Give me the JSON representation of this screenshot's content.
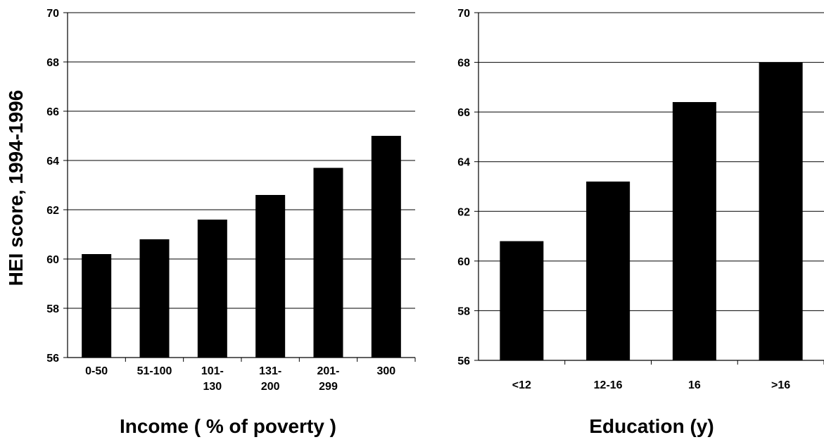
{
  "chart_data": [
    {
      "type": "bar",
      "categories": [
        [
          "0-50"
        ],
        [
          "51-100"
        ],
        [
          "101-",
          "130"
        ],
        [
          "131-",
          "200"
        ],
        [
          "201-",
          "299"
        ],
        [
          "300"
        ]
      ],
      "values": [
        60.2,
        60.8,
        61.6,
        62.6,
        63.7,
        65.0
      ],
      "ylim": [
        56,
        70
      ],
      "yticks": [
        "56",
        "58",
        "60",
        "62",
        "64",
        "66",
        "68",
        "70"
      ],
      "xlabel": "Income ( % of poverty )",
      "ylabel": "HEI score, 1994-1996",
      "grid": true,
      "bar_color": "#000000"
    },
    {
      "type": "bar",
      "categories": [
        [
          "<12"
        ],
        [
          "12-16"
        ],
        [
          "16"
        ],
        [
          ">16"
        ]
      ],
      "values": [
        60.8,
        63.2,
        66.4,
        68.0
      ],
      "ylim": [
        56,
        70
      ],
      "yticks": [
        "56",
        "58",
        "60",
        "62",
        "64",
        "66",
        "68",
        "70"
      ],
      "xlabel": "Education (y)",
      "ylabel": "",
      "grid": true,
      "bar_color": "#000000"
    }
  ]
}
